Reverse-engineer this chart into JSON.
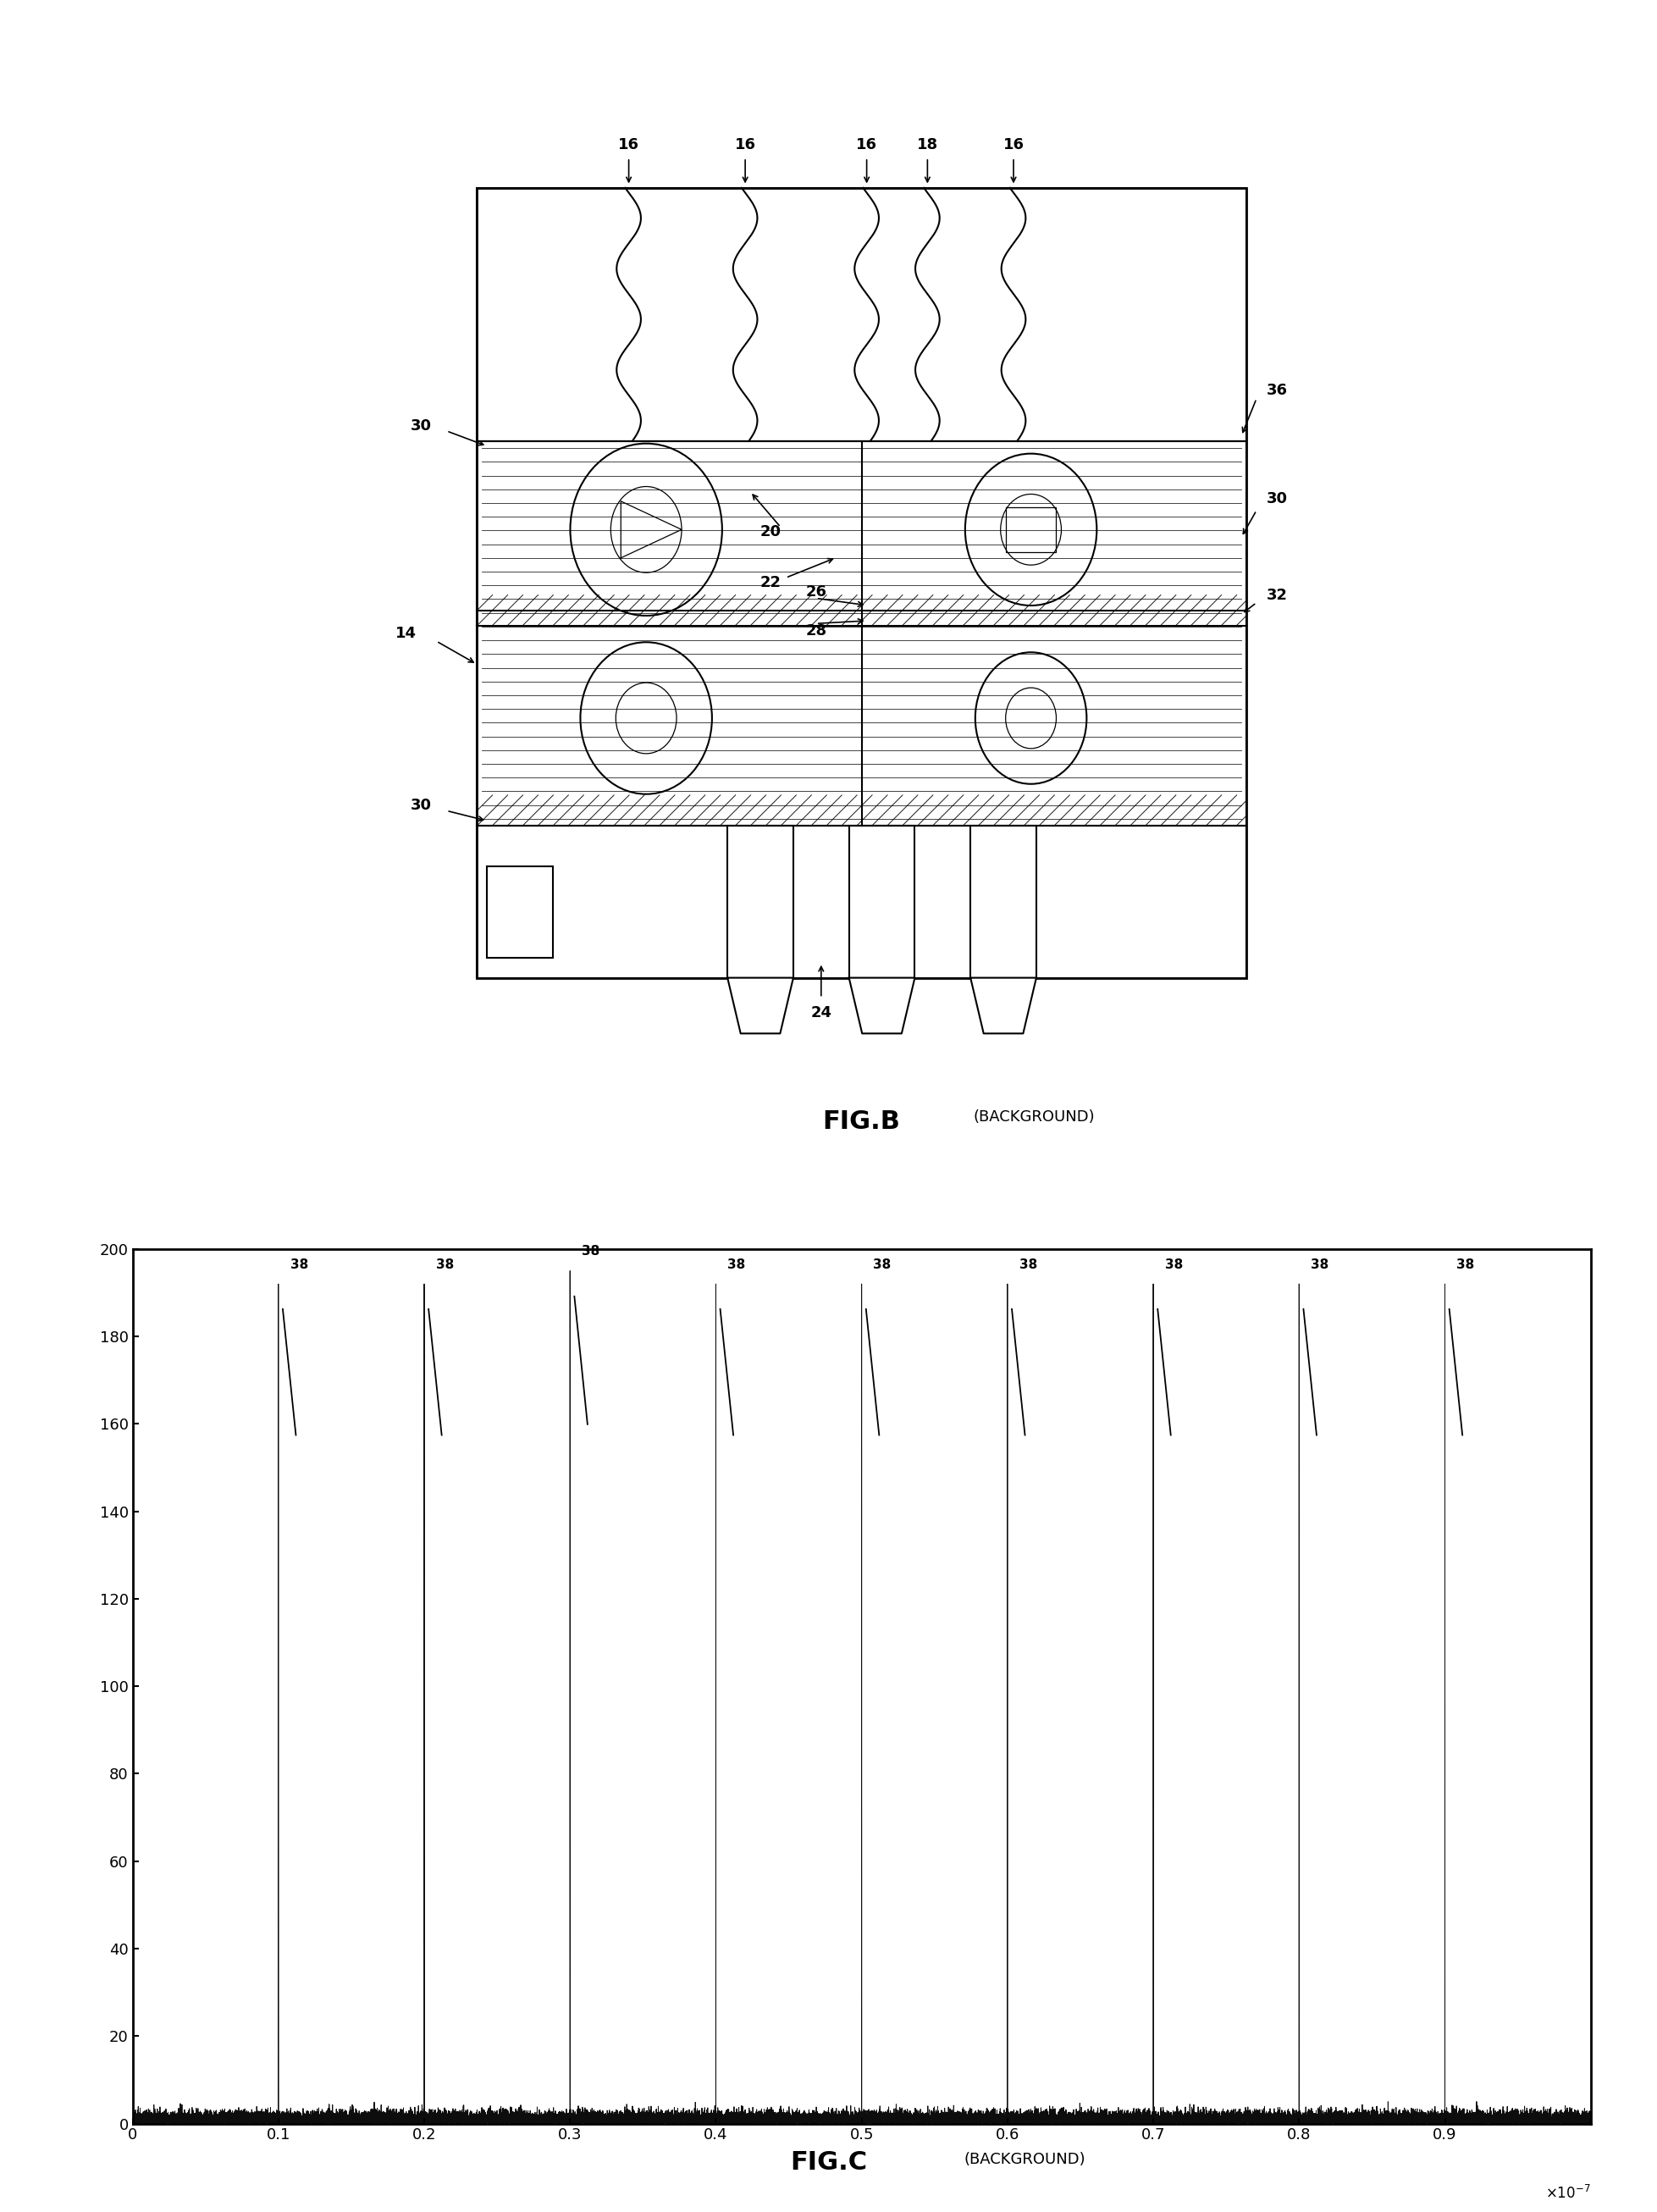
{
  "fig_width": 19.57,
  "fig_height": 26.12,
  "background_color": "#ffffff",
  "figB_caption": "FIG.B",
  "figB_caption_sub": "(BACKGROUND)",
  "figC_caption": "FIG.C",
  "figC_caption_sub": "(BACKGROUND)",
  "spike_positions": [
    0.1,
    0.2,
    0.3,
    0.4,
    0.5,
    0.6,
    0.7,
    0.8,
    0.9
  ],
  "spike_heights": [
    192,
    192,
    195,
    192,
    192,
    192,
    192,
    192,
    192
  ],
  "spike_label": "38",
  "ylim": [
    0,
    200
  ],
  "xlim": [
    0,
    1.0
  ],
  "yticks": [
    0,
    20,
    40,
    60,
    80,
    100,
    120,
    140,
    160,
    180,
    200
  ],
  "xticks": [
    0,
    0.1,
    0.2,
    0.3,
    0.4,
    0.5,
    0.6,
    0.7,
    0.8,
    0.9
  ],
  "noise_amplitude": 1.2,
  "spike_color": "#000000",
  "noise_color": "#000000"
}
